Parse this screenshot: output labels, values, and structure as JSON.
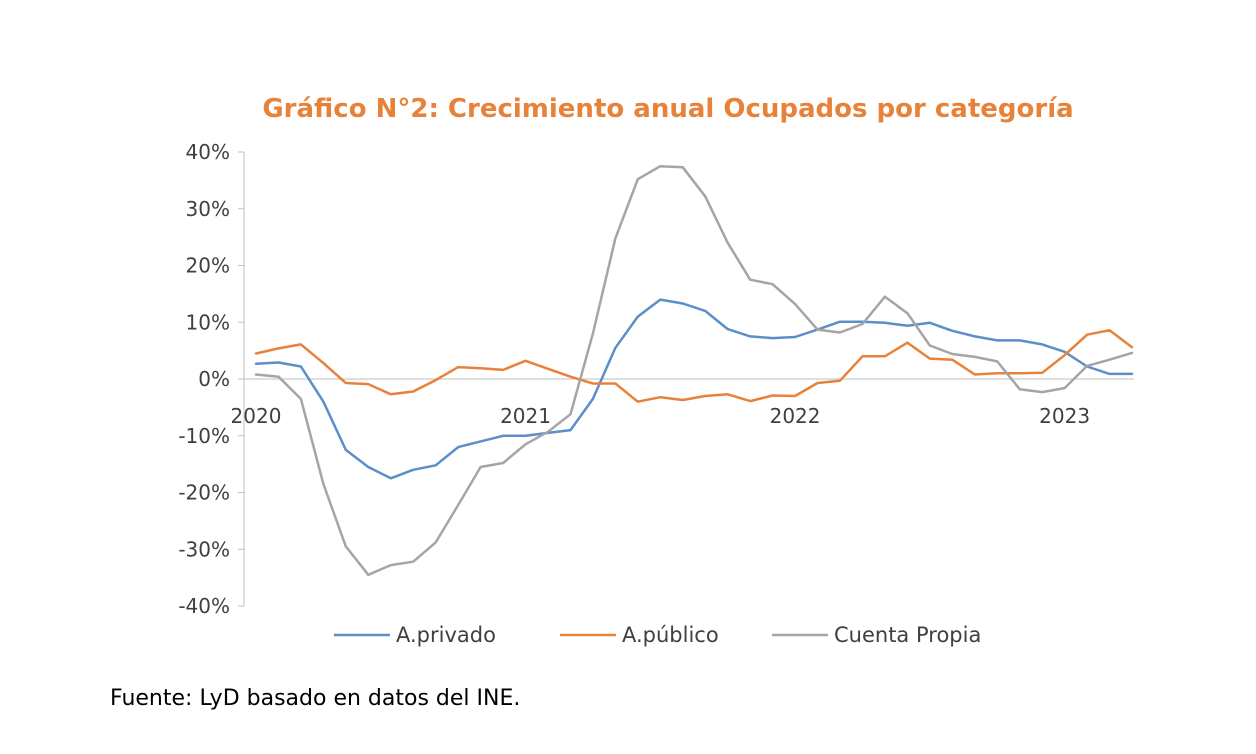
{
  "chart_data": {
    "type": "line",
    "title": "Gráfico N°2: Crecimiento anual Ocupados por categoría",
    "xlabel": "",
    "ylabel": "",
    "ylim": [
      -40,
      40
    ],
    "y_ticks": [
      40,
      30,
      20,
      10,
      0,
      -10,
      -20,
      -30,
      -40
    ],
    "y_tick_labels": [
      "40%",
      "30%",
      "20%",
      "10%",
      "0%",
      "-10%",
      "-20%",
      "-30%",
      "-40%"
    ],
    "x_start_index": 0,
    "x_end_index": 39,
    "x_tick_labels": [
      {
        "label": "2020",
        "index": 0
      },
      {
        "label": "2021",
        "index": 12
      },
      {
        "label": "2022",
        "index": 24
      },
      {
        "label": "2023",
        "index": 36
      }
    ],
    "series": [
      {
        "name": "A.privado",
        "color": "#5B8FC9",
        "values": [
          2.7,
          2.9,
          2.2,
          -4,
          -12.5,
          -15.5,
          -17.5,
          -16,
          -15.2,
          -12,
          -11,
          -10,
          -10,
          -9.5,
          -9,
          -3.5,
          5.5,
          11,
          14,
          13.3,
          12,
          8.8,
          7.5,
          7.2,
          7.4,
          8.7,
          10.1,
          10.1,
          9.9,
          9.4,
          9.9,
          8.5,
          7.5,
          6.8,
          6.8,
          6.1,
          4.8,
          2.2,
          0.9,
          0.9
        ]
      },
      {
        "name": "A.público",
        "color": "#E8823A",
        "values": [
          4.5,
          5.4,
          6.1,
          2.8,
          -0.7,
          -0.9,
          -2.7,
          -2.2,
          -0.2,
          2.1,
          1.9,
          1.6,
          3.2,
          1.8,
          0.4,
          -0.8,
          -0.8,
          -4,
          -3.2,
          -3.7,
          -3,
          -2.7,
          -3.9,
          -2.9,
          -3,
          -0.7,
          -0.3,
          4,
          4,
          6.4,
          3.6,
          3.4,
          0.8,
          1,
          1,
          1.1,
          4.2,
          7.8,
          8.6,
          5.6
        ]
      },
      {
        "name": "Cuenta Propia",
        "color": "#A5A5A5",
        "values": [
          0.8,
          0.4,
          -3.5,
          -18.5,
          -29.5,
          -34.5,
          -32.8,
          -32.2,
          -28.8,
          -22.2,
          -15.5,
          -14.8,
          -11.5,
          -9.3,
          -6.2,
          8,
          24.8,
          35.2,
          37.5,
          37.3,
          32.2,
          24,
          17.5,
          16.7,
          13.2,
          8.7,
          8.2,
          9.7,
          14.5,
          11.6,
          5.9,
          4.4,
          3.9,
          3.1,
          -1.8,
          -2.3,
          -1.6,
          2.3,
          3.4,
          4.6
        ]
      }
    ],
    "legend_position": "bottom"
  },
  "source": "Fuente: LyD basado en datos del INE."
}
